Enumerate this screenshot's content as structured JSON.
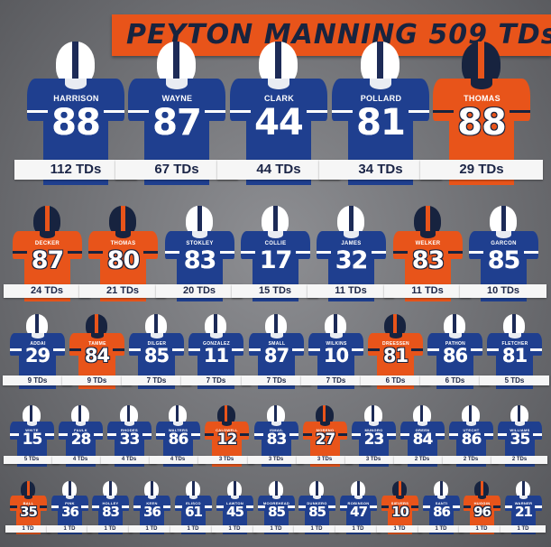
{
  "title": "PEYTON MANNING 509 TDs",
  "colors": {
    "colts_blue": "#1f3f8f",
    "broncos_orange": "#e8541a",
    "navy": "#17233f",
    "banner": "#e8541a"
  },
  "rows": [
    [
      {
        "name": "HARRISON",
        "number": "88",
        "tds": "112 TDs",
        "team": "colts"
      },
      {
        "name": "WAYNE",
        "number": "87",
        "tds": "67 TDs",
        "team": "colts"
      },
      {
        "name": "CLARK",
        "number": "44",
        "tds": "44 TDs",
        "team": "colts"
      },
      {
        "name": "POLLARD",
        "number": "81",
        "tds": "34 TDs",
        "team": "colts"
      },
      {
        "name": "THOMAS",
        "number": "88",
        "tds": "29 TDs",
        "team": "broncos"
      }
    ],
    [
      {
        "name": "DECKER",
        "number": "87",
        "tds": "24 TDs",
        "team": "broncos"
      },
      {
        "name": "THOMAS",
        "number": "80",
        "tds": "21 TDs",
        "team": "broncos"
      },
      {
        "name": "STOKLEY",
        "number": "83",
        "tds": "20 TDs",
        "team": "colts"
      },
      {
        "name": "COLLIE",
        "number": "17",
        "tds": "15 TDs",
        "team": "colts"
      },
      {
        "name": "JAMES",
        "number": "32",
        "tds": "11 TDs",
        "team": "colts"
      },
      {
        "name": "WELKER",
        "number": "83",
        "tds": "11 TDs",
        "team": "broncos"
      },
      {
        "name": "GARCON",
        "number": "85",
        "tds": "10 TDs",
        "team": "colts"
      }
    ],
    [
      {
        "name": "ADDAI",
        "number": "29",
        "tds": "9 TDs",
        "team": "colts"
      },
      {
        "name": "TAMME",
        "number": "84",
        "tds": "9 TDs",
        "team": "broncos"
      },
      {
        "name": "DILGER",
        "number": "85",
        "tds": "7 TDs",
        "team": "colts"
      },
      {
        "name": "GONZALEZ",
        "number": "11",
        "tds": "7 TDs",
        "team": "colts"
      },
      {
        "name": "SMALL",
        "number": "87",
        "tds": "7 TDs",
        "team": "colts"
      },
      {
        "name": "WILKINS",
        "number": "10",
        "tds": "7 TDs",
        "team": "colts"
      },
      {
        "name": "DREESSEN",
        "number": "81",
        "tds": "6 TDs",
        "team": "broncos"
      },
      {
        "name": "PATHON",
        "number": "86",
        "tds": "6 TDs",
        "team": "colts"
      },
      {
        "name": "FLETCHER",
        "number": "81",
        "tds": "5 TDs",
        "team": "colts"
      }
    ],
    [
      {
        "name": "WHITE",
        "number": "15",
        "tds": "5 TDs",
        "team": "colts"
      },
      {
        "name": "FAULK",
        "number": "28",
        "tds": "4 TDs",
        "team": "colts"
      },
      {
        "name": "RHODES",
        "number": "33",
        "tds": "4 TDs",
        "team": "colts"
      },
      {
        "name": "WALTERS",
        "number": "86",
        "tds": "4 TDs",
        "team": "colts"
      },
      {
        "name": "CALDWELL",
        "number": "12",
        "tds": "3 TDs",
        "team": "broncos"
      },
      {
        "name": "ISMAIL",
        "number": "83",
        "tds": "3 TDs",
        "team": "colts"
      },
      {
        "name": "MORENO",
        "number": "27",
        "tds": "3 TDs",
        "team": "broncos"
      },
      {
        "name": "MUNGRO",
        "number": "23",
        "tds": "3 TDs",
        "team": "colts"
      },
      {
        "name": "GREEN",
        "number": "84",
        "tds": "2 TDs",
        "team": "colts"
      },
      {
        "name": "UTECHT",
        "number": "86",
        "tds": "2 TDs",
        "team": "colts"
      },
      {
        "name": "WILLIAMS",
        "number": "35",
        "tds": "2 TDs",
        "team": "colts"
      }
    ],
    [
      {
        "name": "BALL",
        "number": "35",
        "tds": "1 TD",
        "team": "broncos"
      },
      {
        "name": "PINK",
        "number": "36",
        "tds": "1 TD",
        "team": "colts"
      },
      {
        "name": "HOLLEY",
        "number": "83",
        "tds": "1 TD",
        "team": "colts"
      },
      {
        "name": "KEEN",
        "number": "36",
        "tds": "1 TD",
        "team": "colts"
      },
      {
        "name": "ELISCO",
        "number": "61",
        "tds": "1 TD",
        "team": "colts"
      },
      {
        "name": "LAWTON",
        "number": "45",
        "tds": "1 TD",
        "team": "colts"
      },
      {
        "name": "MOOREHEAD",
        "number": "85",
        "tds": "1 TD",
        "team": "colts"
      },
      {
        "name": "DUNKERG",
        "number": "85",
        "tds": "1 TD",
        "team": "colts"
      },
      {
        "name": "ROBINSON",
        "number": "47",
        "tds": "1 TD",
        "team": "colts"
      },
      {
        "name": "SIEVERS",
        "number": "10",
        "tds": "1 TD",
        "team": "broncos"
      },
      {
        "name": "SANTI",
        "number": "86",
        "tds": "1 TD",
        "team": "colts"
      },
      {
        "name": "HUGGIN",
        "number": "96",
        "tds": "1 TD",
        "team": "broncos"
      },
      {
        "name": "WARNER",
        "number": "21",
        "tds": "1 TD",
        "team": "colts"
      }
    ]
  ]
}
